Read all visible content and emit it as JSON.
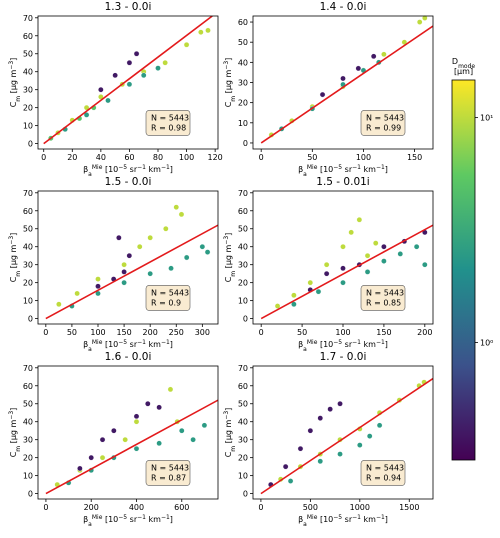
{
  "chart_data": [
    {
      "type": "scatter",
      "title": "1.3 - 0.0i",
      "annotation": [
        "N = 5443",
        "R = 0.98"
      ],
      "xlabel": [
        {
          "text": "β",
          "pos": "base"
        },
        {
          "text": "a",
          "pos": "sub"
        },
        {
          "text": "Mie",
          "pos": "sup"
        },
        {
          "text": " [10",
          "pos": "base"
        },
        {
          "text": "−5",
          "pos": "sup"
        },
        {
          "text": " sr",
          "pos": "base"
        },
        {
          "text": "−1",
          "pos": "sup"
        },
        {
          "text": " km",
          "pos": "base"
        },
        {
          "text": "−1",
          "pos": "sup"
        },
        {
          "text": "]",
          "pos": "base"
        }
      ],
      "ylabel": [
        {
          "text": "C",
          "pos": "base"
        },
        {
          "text": "m",
          "pos": "sub"
        },
        {
          "text": " [μg m",
          "pos": "base"
        },
        {
          "text": "−3",
          "pos": "sup"
        },
        {
          "text": "]",
          "pos": "base"
        }
      ],
      "xlim": [
        -4,
        122
      ],
      "xticks": [
        0,
        20,
        40,
        60,
        80,
        100,
        120
      ],
      "ylim": [
        -3,
        71
      ],
      "yticks": [
        0,
        10,
        20,
        30,
        40,
        50,
        60,
        70
      ],
      "x": [
        10,
        20,
        30,
        40,
        55,
        70,
        85,
        100,
        110,
        115,
        15,
        30,
        45,
        60,
        70,
        80,
        40,
        50,
        60,
        65,
        5,
        25,
        35
      ],
      "y": [
        6,
        13,
        20,
        26,
        33,
        40,
        45,
        55,
        62,
        63,
        8,
        16,
        24,
        33,
        38,
        42,
        30,
        38,
        45,
        50,
        3,
        14,
        20
      ],
      "c": [
        10,
        10,
        10,
        10,
        10,
        10,
        10,
        10,
        10,
        10,
        2.5,
        2.5,
        2.5,
        2.5,
        2.5,
        2.5,
        0.4,
        0.4,
        0.4,
        0.4,
        5,
        5,
        5
      ],
      "fit": {
        "x": [
          0,
          118
        ],
        "y": [
          0,
          71
        ]
      },
      "fit_color": "#e31a1c"
    },
    {
      "type": "scatter",
      "title": "1.4 - 0.0i",
      "annotation": [
        "N = 5443",
        "R = 0.99"
      ],
      "xlabel": [
        {
          "text": "β",
          "pos": "base"
        },
        {
          "text": "a",
          "pos": "sub"
        },
        {
          "text": "Mie",
          "pos": "sup"
        },
        {
          "text": " [10",
          "pos": "base"
        },
        {
          "text": "−5",
          "pos": "sup"
        },
        {
          "text": " sr",
          "pos": "base"
        },
        {
          "text": "−1",
          "pos": "sup"
        },
        {
          "text": " km",
          "pos": "base"
        },
        {
          "text": "−1",
          "pos": "sup"
        },
        {
          "text": "]",
          "pos": "base"
        }
      ],
      "ylabel": [
        {
          "text": "C",
          "pos": "base"
        },
        {
          "text": "m",
          "pos": "sub"
        },
        {
          "text": " [μg m",
          "pos": "base"
        },
        {
          "text": "−3",
          "pos": "sup"
        },
        {
          "text": "]",
          "pos": "base"
        }
      ],
      "xlim": [
        -8,
        168
      ],
      "xticks": [
        0,
        50,
        100,
        150
      ],
      "ylim": [
        -3,
        63
      ],
      "yticks": [
        0,
        10,
        20,
        30,
        40,
        50,
        60
      ],
      "x": [
        10,
        30,
        50,
        80,
        100,
        120,
        140,
        155,
        160,
        20,
        50,
        80,
        100,
        115,
        60,
        80,
        95,
        110
      ],
      "y": [
        4,
        11,
        18,
        28,
        36,
        44,
        50,
        60,
        62,
        7,
        17,
        29,
        36,
        40,
        24,
        32,
        37,
        43
      ],
      "c": [
        10,
        10,
        10,
        10,
        10,
        10,
        10,
        10,
        10,
        2.5,
        2.5,
        2.5,
        2.5,
        2.5,
        0.4,
        0.4,
        0.4,
        0.4
      ],
      "fit": {
        "x": [
          0,
          168
        ],
        "y": [
          0,
          58
        ]
      },
      "fit_color": "#e31a1c"
    },
    {
      "type": "scatter",
      "title": "1.5 - 0.0i",
      "annotation": [
        "N = 5443",
        "R = 0.9"
      ],
      "xlabel": [
        {
          "text": "β",
          "pos": "base"
        },
        {
          "text": "a",
          "pos": "sub"
        },
        {
          "text": "Mie",
          "pos": "sup"
        },
        {
          "text": " [10",
          "pos": "base"
        },
        {
          "text": "−5",
          "pos": "sup"
        },
        {
          "text": " sr",
          "pos": "base"
        },
        {
          "text": "−1",
          "pos": "sup"
        },
        {
          "text": " km",
          "pos": "base"
        },
        {
          "text": "−1",
          "pos": "sup"
        },
        {
          "text": "]",
          "pos": "base"
        }
      ],
      "ylabel": [
        {
          "text": "C",
          "pos": "base"
        },
        {
          "text": "m",
          "pos": "sub"
        },
        {
          "text": " [μg m",
          "pos": "base"
        },
        {
          "text": "−3",
          "pos": "sup"
        },
        {
          "text": "]",
          "pos": "base"
        }
      ],
      "xlim": [
        -15,
        330
      ],
      "xticks": [
        0,
        50,
        100,
        150,
        200,
        250,
        300
      ],
      "ylim": [
        -3,
        71
      ],
      "yticks": [
        0,
        10,
        20,
        30,
        40,
        50,
        60,
        70
      ],
      "x": [
        25,
        60,
        100,
        150,
        180,
        200,
        230,
        250,
        260,
        50,
        100,
        150,
        200,
        240,
        270,
        300,
        310,
        100,
        130,
        150,
        160,
        140
      ],
      "y": [
        8,
        14,
        22,
        30,
        40,
        45,
        50,
        62,
        58,
        7,
        14,
        20,
        25,
        28,
        34,
        40,
        37,
        18,
        22,
        26,
        35,
        45
      ],
      "c": [
        10,
        10,
        10,
        10,
        10,
        10,
        10,
        10,
        10,
        2.5,
        2.5,
        2.5,
        2.5,
        2.5,
        2.5,
        2.5,
        2.5,
        0.4,
        0.4,
        0.4,
        0.4,
        0.4
      ],
      "fit": {
        "x": [
          0,
          330
        ],
        "y": [
          0,
          52
        ]
      },
      "fit_color": "#e31a1c"
    },
    {
      "type": "scatter",
      "title": "1.5 - 0.01i",
      "annotation": [
        "N = 5443",
        "R = 0.85"
      ],
      "xlabel": [
        {
          "text": "β",
          "pos": "base"
        },
        {
          "text": "a",
          "pos": "sub"
        },
        {
          "text": "Mie",
          "pos": "sup"
        },
        {
          "text": " [10",
          "pos": "base"
        },
        {
          "text": "−5",
          "pos": "sup"
        },
        {
          "text": " sr",
          "pos": "base"
        },
        {
          "text": "−1",
          "pos": "sup"
        },
        {
          "text": " km",
          "pos": "base"
        },
        {
          "text": "−1",
          "pos": "sup"
        },
        {
          "text": "]",
          "pos": "base"
        }
      ],
      "ylabel": [
        {
          "text": "C",
          "pos": "base"
        },
        {
          "text": "m",
          "pos": "sub"
        },
        {
          "text": " [μg m",
          "pos": "base"
        },
        {
          "text": "−3",
          "pos": "sup"
        },
        {
          "text": "]",
          "pos": "base"
        }
      ],
      "xlim": [
        -10,
        210
      ],
      "xticks": [
        0,
        50,
        100,
        150,
        200
      ],
      "ylim": [
        -3,
        71
      ],
      "yticks": [
        0,
        10,
        20,
        30,
        40,
        50,
        60,
        70
      ],
      "x": [
        20,
        40,
        60,
        80,
        100,
        110,
        120,
        130,
        140,
        40,
        70,
        100,
        130,
        150,
        170,
        190,
        200,
        60,
        80,
        100,
        120,
        150,
        175,
        200
      ],
      "y": [
        7,
        13,
        20,
        30,
        40,
        48,
        55,
        35,
        42,
        8,
        15,
        20,
        26,
        32,
        36,
        40,
        30,
        16,
        25,
        28,
        30,
        40,
        43,
        48
      ],
      "c": [
        10,
        10,
        10,
        10,
        10,
        10,
        10,
        10,
        10,
        2.5,
        2.5,
        2.5,
        2.5,
        2.5,
        2.5,
        2.5,
        2.5,
        0.4,
        0.4,
        0.4,
        0.4,
        0.4,
        0.4,
        0.4
      ],
      "fit": {
        "x": [
          0,
          210
        ],
        "y": [
          0,
          52
        ]
      },
      "fit_color": "#e31a1c"
    },
    {
      "type": "scatter",
      "title": "1.6 - 0.0i",
      "annotation": [
        "N = 5443",
        "R = 0.87"
      ],
      "xlabel": [
        {
          "text": "β",
          "pos": "base"
        },
        {
          "text": "a",
          "pos": "sub"
        },
        {
          "text": "Mie",
          "pos": "sup"
        },
        {
          "text": " [10",
          "pos": "base"
        },
        {
          "text": "−5",
          "pos": "sup"
        },
        {
          "text": " sr",
          "pos": "base"
        },
        {
          "text": "−1",
          "pos": "sup"
        },
        {
          "text": " km",
          "pos": "base"
        },
        {
          "text": "−1",
          "pos": "sup"
        },
        {
          "text": "]",
          "pos": "base"
        }
      ],
      "ylabel": [
        {
          "text": "C",
          "pos": "base"
        },
        {
          "text": "m",
          "pos": "sub"
        },
        {
          "text": " [μg m",
          "pos": "base"
        },
        {
          "text": "−3",
          "pos": "sup"
        },
        {
          "text": "]",
          "pos": "base"
        }
      ],
      "xlim": [
        -35,
        760
      ],
      "xticks": [
        0,
        200,
        400,
        600
      ],
      "ylim": [
        -3,
        71
      ],
      "yticks": [
        0,
        10,
        20,
        30,
        40,
        50,
        60,
        70
      ],
      "x": [
        50,
        150,
        250,
        350,
        400,
        500,
        550,
        580,
        100,
        200,
        300,
        400,
        500,
        600,
        650,
        700,
        150,
        200,
        250,
        300,
        400,
        450,
        500
      ],
      "y": [
        5,
        13,
        20,
        30,
        40,
        48,
        58,
        40,
        6,
        13,
        20,
        25,
        28,
        35,
        30,
        38,
        14,
        20,
        30,
        35,
        43,
        50,
        48
      ],
      "c": [
        10,
        10,
        10,
        10,
        10,
        10,
        10,
        10,
        2.5,
        2.5,
        2.5,
        2.5,
        2.5,
        2.5,
        2.5,
        2.5,
        0.4,
        0.4,
        0.4,
        0.4,
        0.4,
        0.4,
        0.4
      ],
      "fit": {
        "x": [
          0,
          760
        ],
        "y": [
          0,
          52
        ]
      },
      "fit_color": "#e31a1c"
    },
    {
      "type": "scatter",
      "title": "1.7 - 0.0i",
      "annotation": [
        "N = 5443",
        "R = 0.94"
      ],
      "xlabel": [
        {
          "text": "β",
          "pos": "base"
        },
        {
          "text": "a",
          "pos": "sub"
        },
        {
          "text": "Mie",
          "pos": "sup"
        },
        {
          "text": " [10",
          "pos": "base"
        },
        {
          "text": "−5",
          "pos": "sup"
        },
        {
          "text": " sr",
          "pos": "base"
        },
        {
          "text": "−1",
          "pos": "sup"
        },
        {
          "text": " km",
          "pos": "base"
        },
        {
          "text": "−1",
          "pos": "sup"
        },
        {
          "text": "]",
          "pos": "base"
        }
      ],
      "ylabel": [
        {
          "text": "C",
          "pos": "base"
        },
        {
          "text": "m",
          "pos": "sub"
        },
        {
          "text": " [μg m",
          "pos": "base"
        },
        {
          "text": "−3",
          "pos": "sup"
        },
        {
          "text": "]",
          "pos": "base"
        }
      ],
      "xlim": [
        -80,
        1740
      ],
      "xticks": [
        0,
        500,
        1000,
        1500
      ],
      "ylim": [
        -3,
        71
      ],
      "yticks": [
        0,
        10,
        20,
        30,
        40,
        50,
        60,
        70
      ],
      "x": [
        200,
        400,
        600,
        800,
        1000,
        1200,
        1400,
        1600,
        1650,
        300,
        600,
        800,
        1000,
        1100,
        1200,
        100,
        250,
        400,
        500,
        600,
        700,
        800
      ],
      "y": [
        8,
        15,
        22,
        30,
        36,
        45,
        52,
        60,
        62,
        7,
        18,
        22,
        27,
        32,
        38,
        5,
        15,
        25,
        35,
        42,
        47,
        50
      ],
      "c": [
        10,
        10,
        10,
        10,
        10,
        10,
        10,
        10,
        10,
        2.5,
        2.5,
        2.5,
        2.5,
        2.5,
        2.5,
        0.4,
        0.4,
        0.4,
        0.4,
        0.4,
        0.4,
        0.4
      ],
      "fit": {
        "x": [
          0,
          1740
        ],
        "y": [
          0,
          64
        ]
      },
      "fit_color": "#e31a1c"
    },
    {
      "type": "colorbar",
      "colormap": "viridis",
      "log": true,
      "label": [
        [
          {
            "text": "D",
            "pos": "base"
          },
          {
            "text": "mode",
            "pos": "sub"
          }
        ],
        [
          {
            "text": "[μm]",
            "pos": "base"
          }
        ]
      ],
      "clim": [
        0.3,
        14.7
      ],
      "ticks": [
        {
          "value": 1,
          "label": "10⁰"
        },
        {
          "value": 10,
          "label": "10¹"
        }
      ]
    }
  ]
}
